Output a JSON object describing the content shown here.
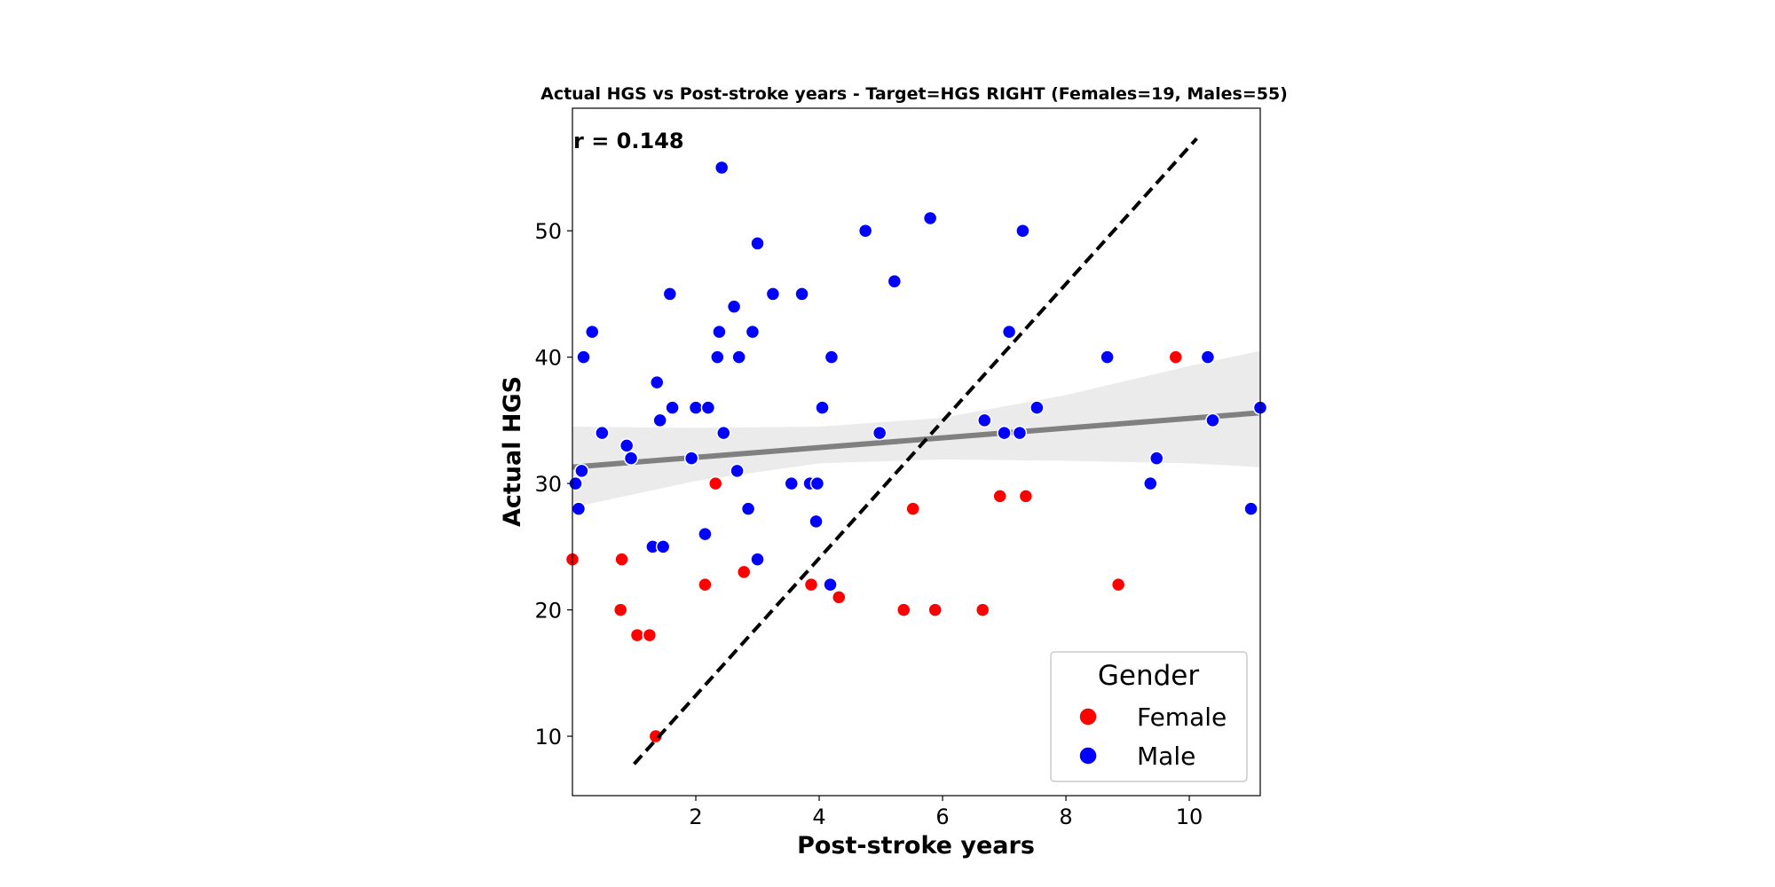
{
  "chart_data": {
    "type": "scatter",
    "title": "Actual HGS vs Post-stroke years - Target=HGS RIGHT (Females=19, Males=55)",
    "xlabel": "Post-stroke years",
    "ylabel": "Actual HGS",
    "xlim": [
      0,
      11.15
    ],
    "ylim": [
      5.3,
      59.7
    ],
    "xticks": [
      2,
      4,
      6,
      8,
      10
    ],
    "yticks": [
      10,
      20,
      30,
      40,
      50
    ],
    "grid": false,
    "annotation": "r = 0.148",
    "legend": {
      "title": "Gender",
      "position": "bottom-right"
    },
    "series": [
      {
        "name": "Female",
        "color": "#ff0000",
        "points": [
          [
            0.0,
            24
          ],
          [
            0.78,
            20
          ],
          [
            0.8,
            24
          ],
          [
            1.05,
            18
          ],
          [
            1.25,
            18
          ],
          [
            1.35,
            10
          ],
          [
            2.15,
            22
          ],
          [
            2.32,
            30
          ],
          [
            2.78,
            23
          ],
          [
            3.87,
            22
          ],
          [
            4.32,
            21
          ],
          [
            5.37,
            20
          ],
          [
            5.52,
            28
          ],
          [
            5.88,
            20
          ],
          [
            6.65,
            20
          ],
          [
            6.93,
            29
          ],
          [
            7.35,
            29
          ],
          [
            8.85,
            22
          ],
          [
            9.78,
            40
          ]
        ]
      },
      {
        "name": "Male",
        "color": "#0000ff",
        "points": [
          [
            0.05,
            30
          ],
          [
            0.1,
            28
          ],
          [
            0.15,
            31
          ],
          [
            0.18,
            40
          ],
          [
            0.32,
            42
          ],
          [
            0.48,
            34
          ],
          [
            0.88,
            33
          ],
          [
            0.95,
            32
          ],
          [
            1.3,
            25
          ],
          [
            1.37,
            38
          ],
          [
            1.42,
            35
          ],
          [
            1.47,
            25
          ],
          [
            1.58,
            45
          ],
          [
            1.62,
            36
          ],
          [
            1.93,
            32
          ],
          [
            2.0,
            36
          ],
          [
            2.15,
            26
          ],
          [
            2.2,
            36
          ],
          [
            2.35,
            40
          ],
          [
            2.38,
            42
          ],
          [
            2.42,
            55
          ],
          [
            2.45,
            34
          ],
          [
            2.62,
            44
          ],
          [
            2.67,
            31
          ],
          [
            2.7,
            40
          ],
          [
            2.85,
            28
          ],
          [
            2.92,
            42
          ],
          [
            3.0,
            49
          ],
          [
            3.0,
            24
          ],
          [
            3.25,
            45
          ],
          [
            3.55,
            30
          ],
          [
            3.72,
            45
          ],
          [
            3.85,
            30
          ],
          [
            3.95,
            27
          ],
          [
            3.97,
            30
          ],
          [
            4.05,
            36
          ],
          [
            4.18,
            22
          ],
          [
            4.2,
            40
          ],
          [
            4.75,
            50
          ],
          [
            4.98,
            34
          ],
          [
            5.22,
            46
          ],
          [
            5.8,
            51
          ],
          [
            6.68,
            35
          ],
          [
            7.0,
            34
          ],
          [
            7.08,
            42
          ],
          [
            7.25,
            34
          ],
          [
            7.3,
            50
          ],
          [
            7.53,
            36
          ],
          [
            8.67,
            40
          ],
          [
            9.37,
            30
          ],
          [
            9.47,
            32
          ],
          [
            10.3,
            40
          ],
          [
            10.38,
            35
          ],
          [
            11.0,
            28
          ],
          [
            11.15,
            36
          ]
        ]
      }
    ],
    "regression_line": {
      "color": "#808080",
      "x": [
        0,
        11.15
      ],
      "y": [
        31.3,
        35.6
      ]
    },
    "confidence_band": {
      "color": "#ebebeb",
      "x": [
        0,
        2,
        4,
        6,
        8,
        10,
        11.15
      ],
      "upper": [
        34.5,
        34.4,
        34.5,
        35.2,
        37.0,
        39.3,
        40.5
      ],
      "lower": [
        28.1,
        30.2,
        31.6,
        31.9,
        31.8,
        31.6,
        31.3
      ]
    },
    "identity_line": {
      "color": "#000000",
      "style": "dashed",
      "x": [
        1.0,
        10.12
      ],
      "y": [
        7.8,
        57.3
      ]
    }
  }
}
